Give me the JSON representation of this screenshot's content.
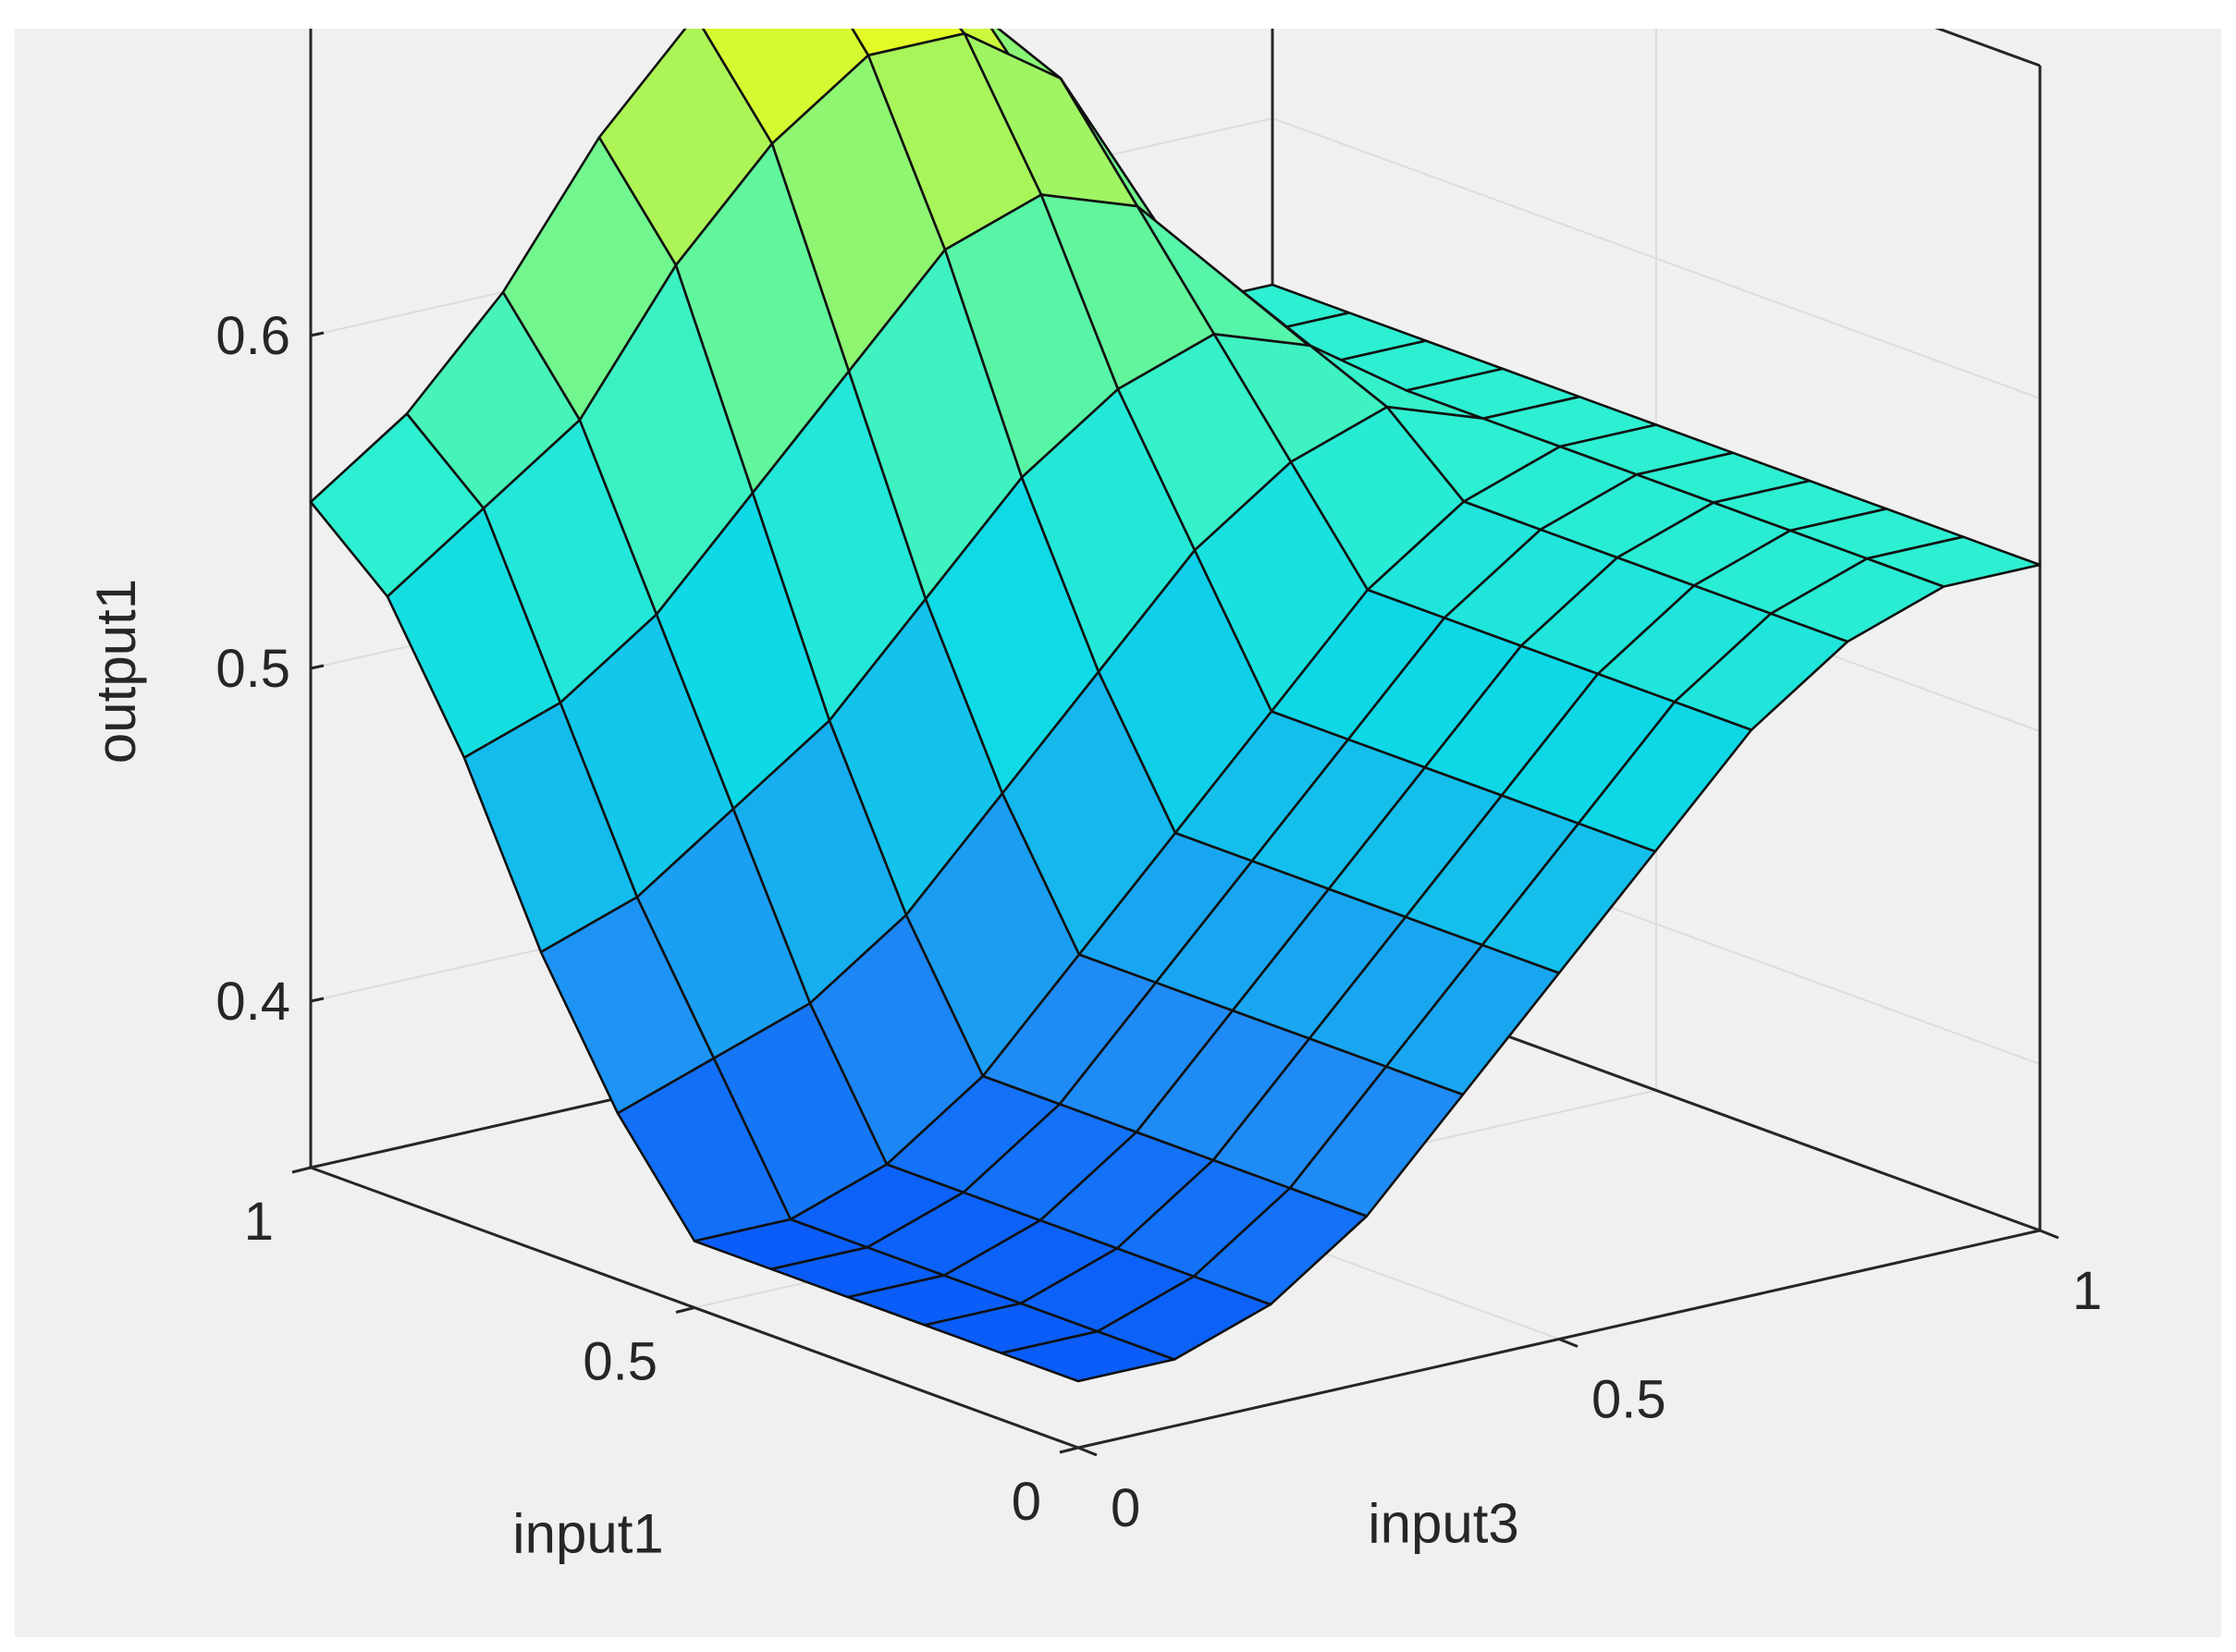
{
  "chart_data": {
    "type": "surface",
    "title": "",
    "axes": {
      "x": {
        "label": "input3",
        "range": [
          0,
          1
        ],
        "ticks": [
          0,
          0.5,
          1
        ],
        "tick_labels": [
          "0",
          "0.5",
          "1"
        ]
      },
      "y": {
        "label": "input1",
        "range": [
          0,
          1
        ],
        "ticks": [
          0,
          0.5,
          1
        ],
        "tick_labels": [
          "0",
          "0.5",
          "1"
        ]
      },
      "z": {
        "label": "output1",
        "range": [
          0.35,
          0.7
        ],
        "ticks": [
          0.4,
          0.5,
          0.6
        ],
        "tick_labels": [
          "0.4",
          "0.5",
          "0.6"
        ]
      }
    },
    "grid": true,
    "colormap": "parula",
    "colormap_stops": [
      "#0a5df8",
      "#1f8cf5",
      "#16b4ee",
      "#0ed9e6",
      "#2ff0d0",
      "#66f798",
      "#b4f54f",
      "#ffff0d"
    ],
    "series": [
      {
        "x": [
          0,
          0.1,
          0.2,
          0.3,
          0.4,
          0.5,
          0.6,
          0.7,
          0.8,
          0.9,
          1.0
        ],
        "y": [
          0,
          0.1,
          0.2,
          0.3,
          0.4,
          0.5,
          0.6,
          0.7,
          0.8,
          0.9,
          1.0
        ],
        "z": [
          [
            0.37,
            0.37,
            0.38,
            0.4,
            0.43,
            0.46,
            0.49,
            0.52,
            0.54,
            0.55,
            0.55
          ],
          [
            0.37,
            0.37,
            0.38,
            0.4,
            0.43,
            0.46,
            0.49,
            0.52,
            0.54,
            0.55,
            0.55
          ],
          [
            0.37,
            0.37,
            0.38,
            0.4,
            0.43,
            0.46,
            0.49,
            0.52,
            0.54,
            0.55,
            0.55
          ],
          [
            0.37,
            0.37,
            0.38,
            0.4,
            0.43,
            0.46,
            0.49,
            0.52,
            0.54,
            0.55,
            0.55
          ],
          [
            0.37,
            0.37,
            0.38,
            0.4,
            0.43,
            0.46,
            0.49,
            0.52,
            0.54,
            0.55,
            0.55
          ],
          [
            0.37,
            0.37,
            0.38,
            0.4,
            0.43,
            0.46,
            0.49,
            0.52,
            0.54,
            0.55,
            0.55
          ],
          [
            0.4,
            0.41,
            0.42,
            0.44,
            0.47,
            0.5,
            0.53,
            0.55,
            0.56,
            0.55,
            0.55
          ],
          [
            0.44,
            0.45,
            0.47,
            0.49,
            0.52,
            0.55,
            0.57,
            0.58,
            0.57,
            0.55,
            0.55
          ],
          [
            0.49,
            0.5,
            0.52,
            0.55,
            0.58,
            0.61,
            0.62,
            0.61,
            0.58,
            0.55,
            0.55
          ],
          [
            0.53,
            0.55,
            0.57,
            0.61,
            0.64,
            0.66,
            0.66,
            0.64,
            0.59,
            0.55,
            0.55
          ],
          [
            0.55,
            0.57,
            0.6,
            0.64,
            0.67,
            0.69,
            0.68,
            0.65,
            0.6,
            0.55,
            0.55
          ]
        ]
      }
    ]
  }
}
